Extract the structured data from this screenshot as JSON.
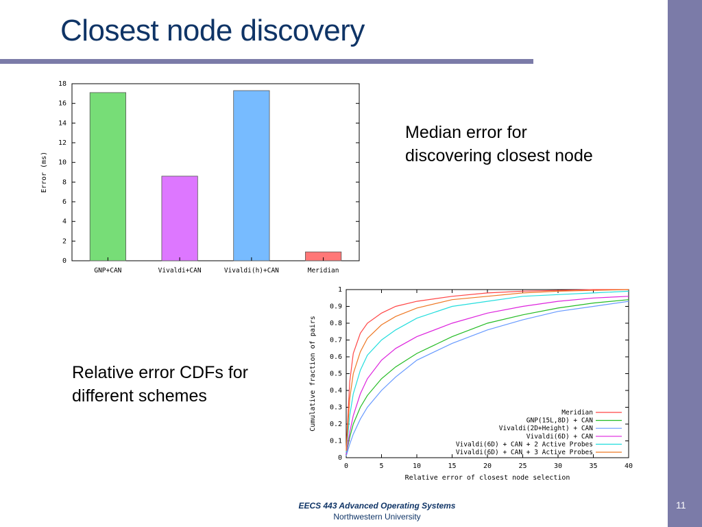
{
  "slide": {
    "title": "Closest node discovery",
    "bar_caption": [
      "Median error for",
      "discovering closest node"
    ],
    "cdf_caption": [
      "Relative error CDFs for",
      "different schemes"
    ],
    "footer": {
      "course": "EECS 443 Advanced Operating Systems",
      "institution": "Northwestern University"
    },
    "page_number": "11",
    "colors": {
      "title": "#0f3466",
      "band": "#7b7ba8"
    }
  },
  "chart_data": [
    {
      "type": "bar",
      "categories": [
        "GNP+CAN",
        "Vivaldi+CAN",
        "Vivaldi(h)+CAN",
        "Meridian"
      ],
      "values": [
        17.1,
        8.6,
        17.3,
        0.9
      ],
      "colors": [
        "#77dd77",
        "#dd77ff",
        "#77bbff",
        "#ff7777"
      ],
      "title": "",
      "xlabel": "",
      "ylabel": "Error (ms)",
      "ylim": [
        0,
        18
      ],
      "yticks": [
        0,
        2,
        4,
        6,
        8,
        10,
        12,
        14,
        16,
        18
      ],
      "grid": false
    },
    {
      "type": "line",
      "title": "",
      "xlabel": "Relative error of closest node selection",
      "ylabel": "Cumulative fraction of pairs",
      "xlim": [
        0,
        40
      ],
      "ylim": [
        0,
        1
      ],
      "xticks": [
        0,
        5,
        10,
        15,
        20,
        25,
        30,
        35,
        40
      ],
      "yticks": [
        "0",
        "0.1",
        "0.2",
        "0.3",
        "0.4",
        "0.5",
        "0.6",
        "0.7",
        "0.8",
        "0.9",
        "1"
      ],
      "legend": "bottom-right",
      "grid": false,
      "x": [
        0,
        0.5,
        1,
        2,
        3,
        5,
        7,
        10,
        15,
        20,
        25,
        30,
        35,
        40
      ],
      "series": [
        {
          "name": "Meridian",
          "color": "#ff4444",
          "values": [
            0.05,
            0.45,
            0.62,
            0.74,
            0.8,
            0.86,
            0.9,
            0.93,
            0.96,
            0.98,
            0.99,
            0.995,
            1.0,
            1.0
          ]
        },
        {
          "name": "GNP(15L,8D) + CAN",
          "color": "#22bb22",
          "values": [
            0.02,
            0.12,
            0.2,
            0.3,
            0.37,
            0.47,
            0.54,
            0.62,
            0.72,
            0.8,
            0.85,
            0.89,
            0.92,
            0.94
          ]
        },
        {
          "name": "Vivaldi(2D+Height) + CAN",
          "color": "#6699ff",
          "values": [
            0.01,
            0.08,
            0.14,
            0.23,
            0.3,
            0.4,
            0.48,
            0.58,
            0.68,
            0.76,
            0.82,
            0.87,
            0.9,
            0.93
          ]
        },
        {
          "name": "Vivaldi(6D) + CAN",
          "color": "#dd22dd",
          "values": [
            0.02,
            0.15,
            0.25,
            0.38,
            0.47,
            0.58,
            0.65,
            0.72,
            0.8,
            0.86,
            0.9,
            0.93,
            0.95,
            0.96
          ]
        },
        {
          "name": "Vivaldi(6D) + CAN + 2 Active Probes",
          "color": "#22dddd",
          "values": [
            0.03,
            0.25,
            0.38,
            0.52,
            0.61,
            0.7,
            0.76,
            0.83,
            0.9,
            0.93,
            0.96,
            0.97,
            0.98,
            0.99
          ]
        },
        {
          "name": "Vivaldi(6D) + CAN + 3 Active Probes",
          "color": "#ee7722",
          "values": [
            0.04,
            0.35,
            0.5,
            0.63,
            0.71,
            0.79,
            0.84,
            0.89,
            0.94,
            0.96,
            0.98,
            0.99,
            0.995,
            1.0
          ]
        }
      ]
    }
  ]
}
